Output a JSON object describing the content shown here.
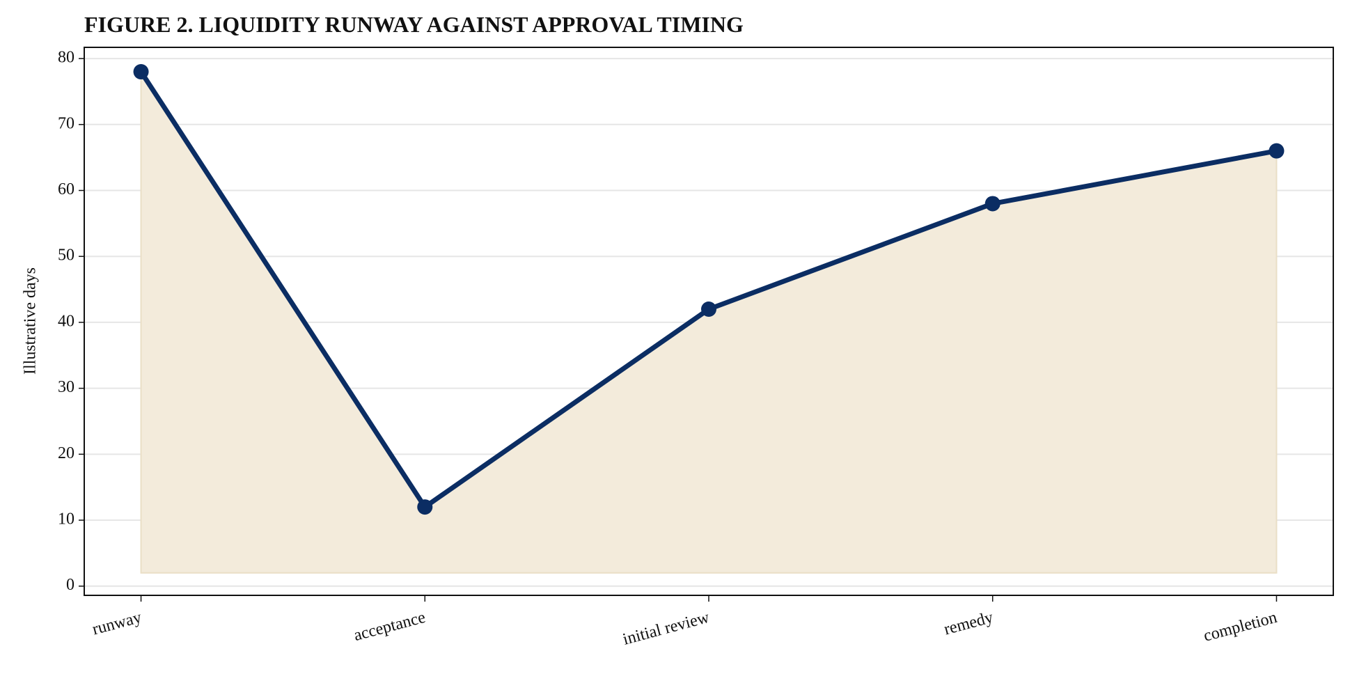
{
  "chart_data": {
    "type": "area-line",
    "title": "FIGURE 2. LIQUIDITY RUNWAY AGAINST APPROVAL TIMING",
    "y_label": "Illustrative days",
    "categories": [
      "runway",
      "acceptance",
      "initial review",
      "remedy",
      "completion"
    ],
    "values": [
      78,
      12,
      42,
      58,
      66
    ],
    "color": "#0b2d63",
    "fill_color": "#f3ebdb",
    "area_baseline": 2,
    "ylim": [
      -1.4,
      81.7
    ],
    "yticks": [
      0,
      10,
      20,
      30,
      40,
      50,
      60,
      70,
      80
    ],
    "grid": true
  }
}
